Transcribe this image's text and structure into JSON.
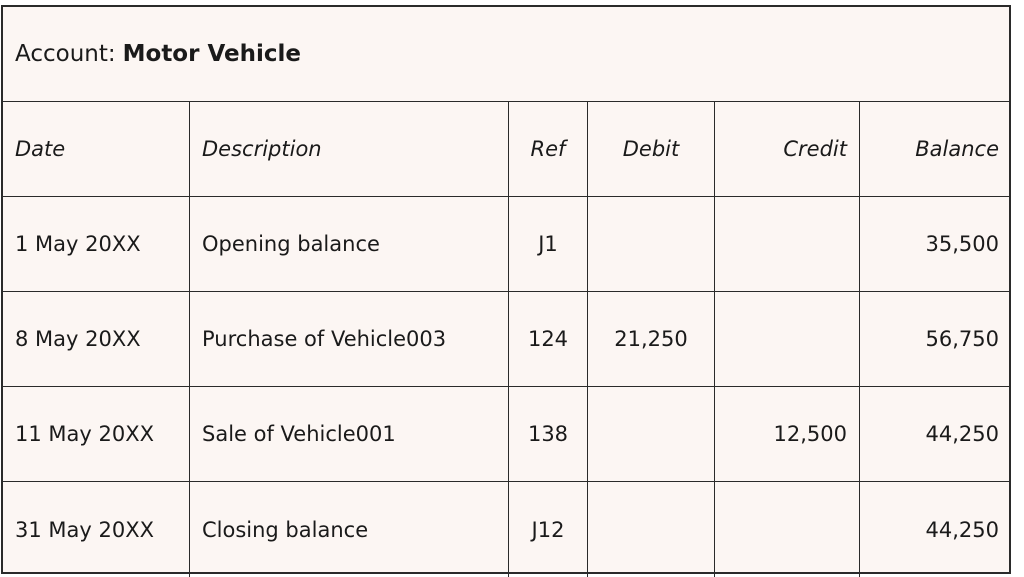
{
  "account": {
    "label": "Account:",
    "name": "Motor Vehicle"
  },
  "columns": [
    "Date",
    "Description",
    "Ref",
    "Debit",
    "Credit",
    "Balance"
  ],
  "rows": [
    [
      "1 May 20XX",
      "Opening balance",
      "J1",
      "",
      "",
      "35,500"
    ],
    [
      "8 May 20XX",
      "Purchase of Vehicle003",
      "124",
      "21,250",
      "",
      "56,750"
    ],
    [
      "11 May 20XX",
      "Sale of Vehicle001",
      "138",
      "",
      "12,500",
      "44,250"
    ],
    [
      "31 May 20XX",
      "Closing balance",
      "J12",
      "",
      "",
      "44,250"
    ]
  ],
  "colors": {
    "background": "#fcf6f3",
    "border": "#2a2a2a",
    "text": "#1a1a1a"
  }
}
